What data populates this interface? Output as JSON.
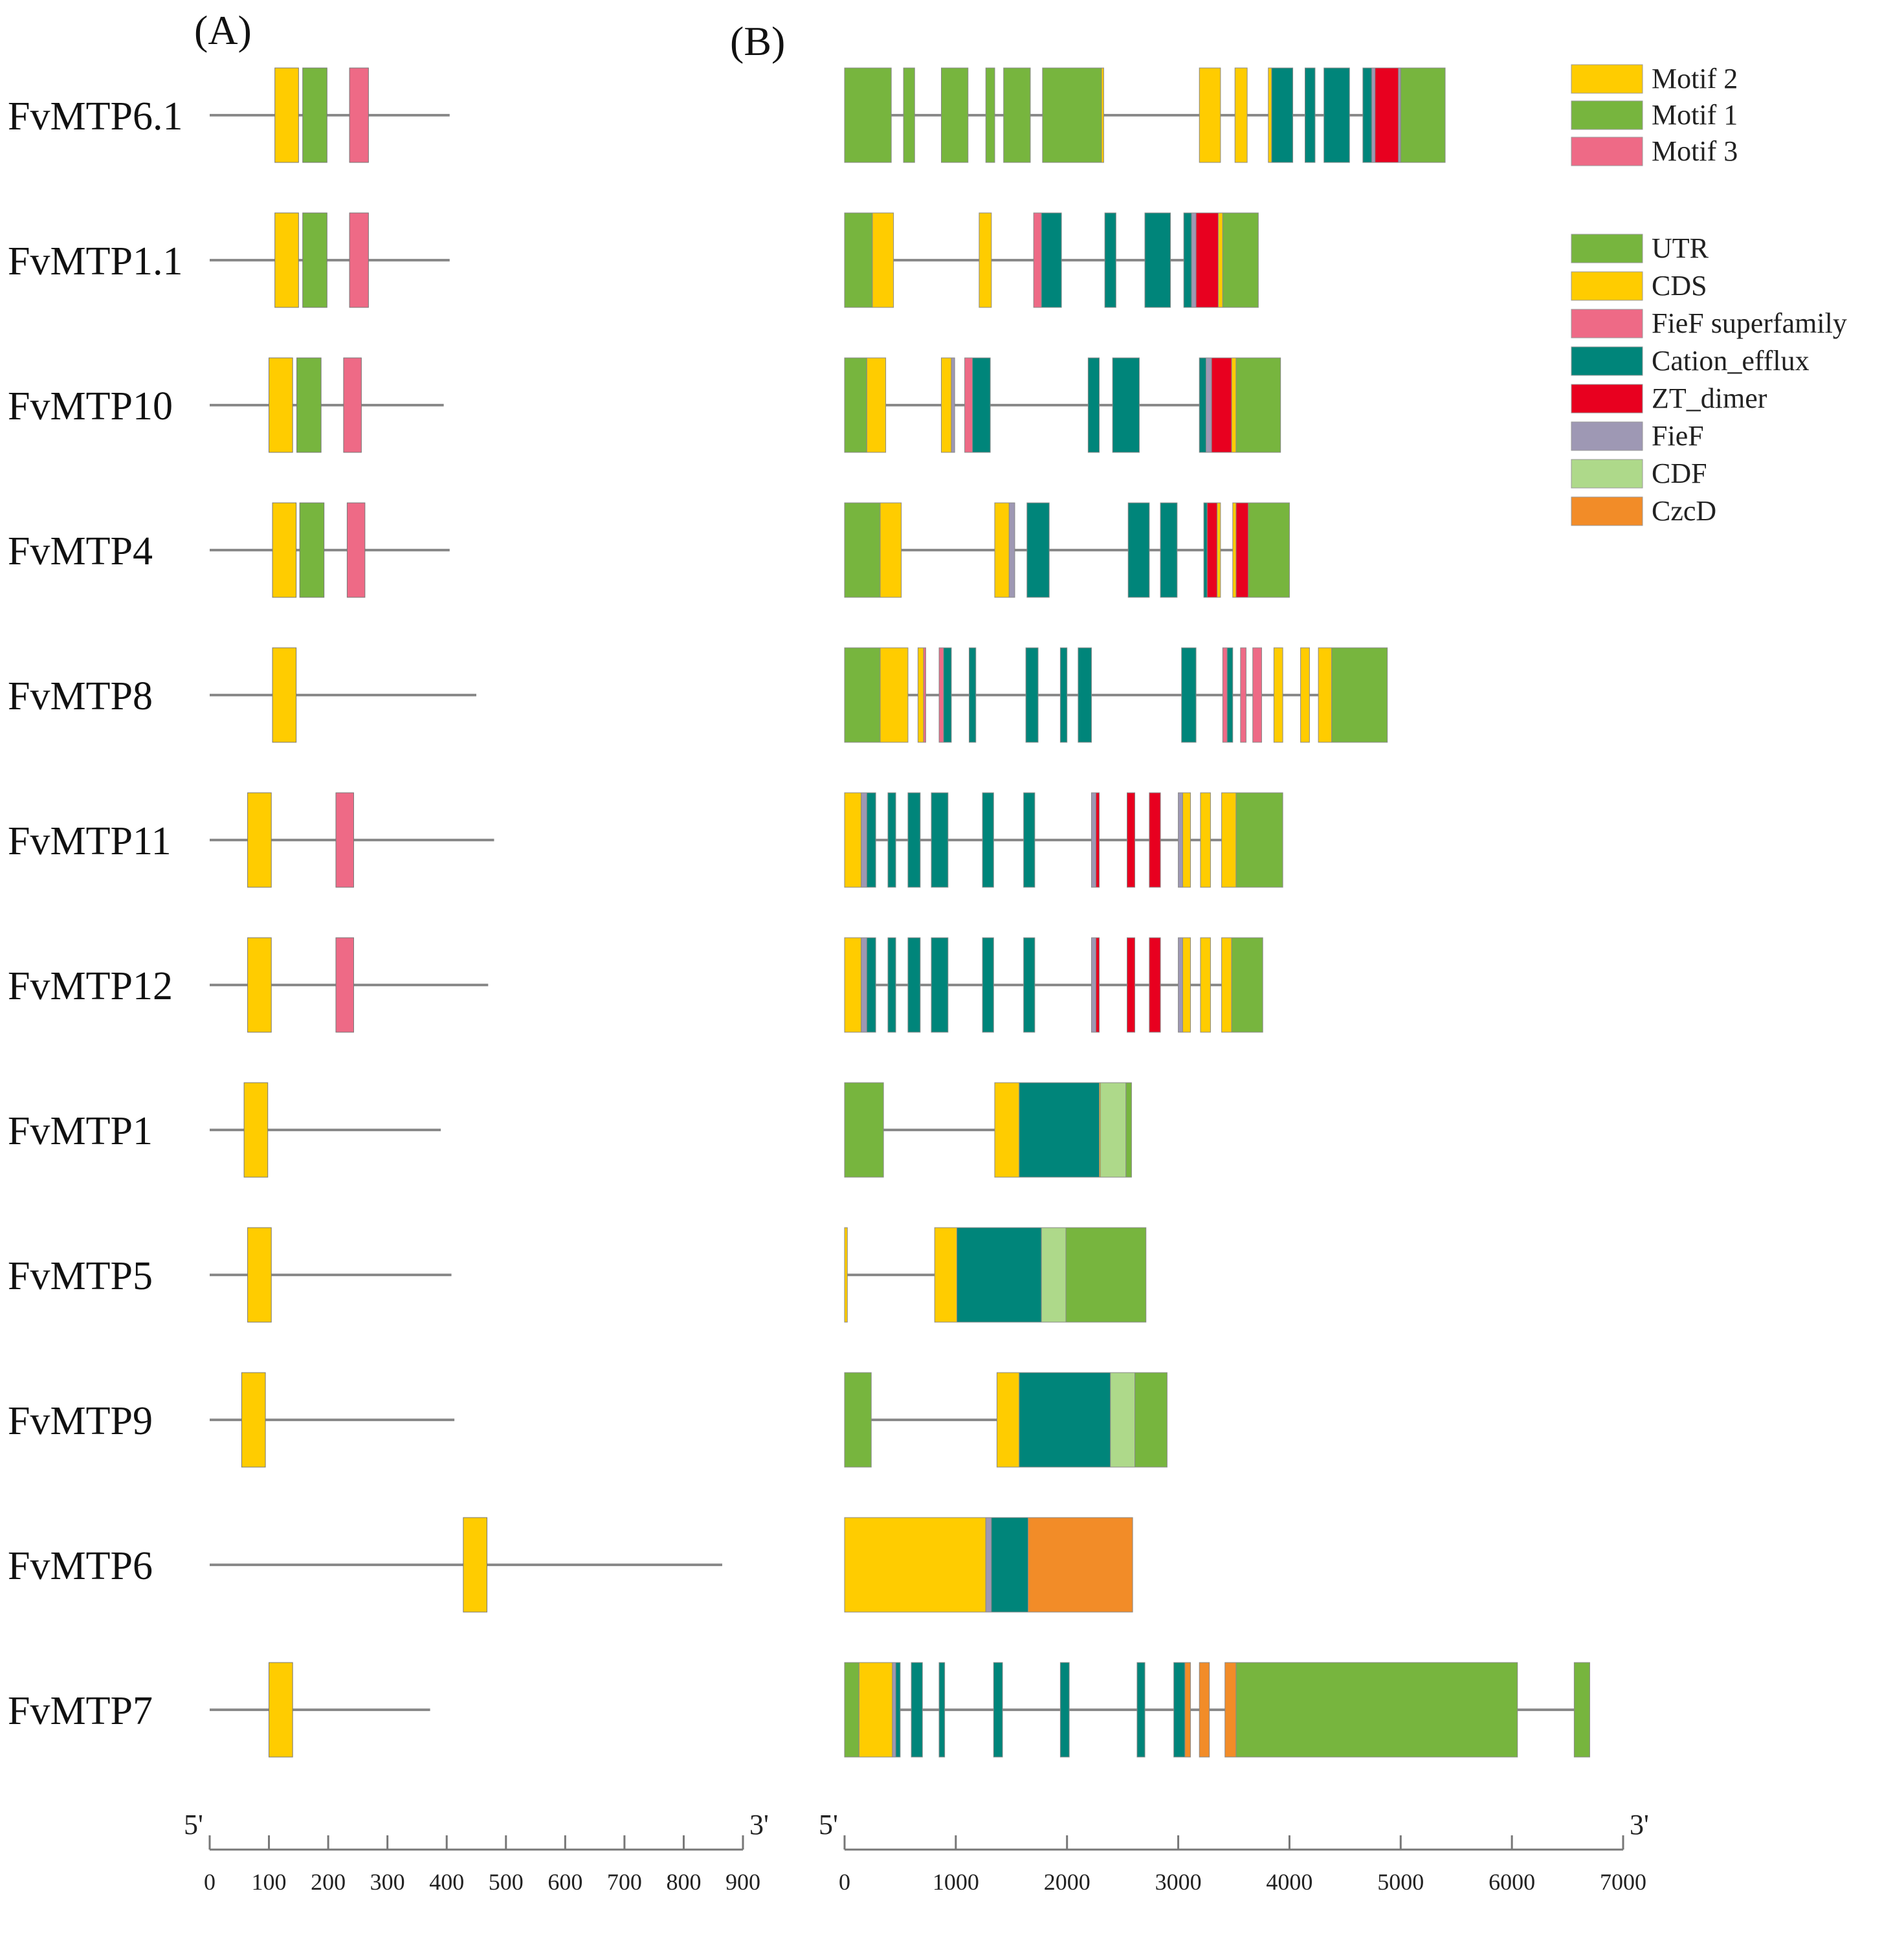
{
  "panel_labels": {
    "a": "(A)",
    "b": "(B)"
  },
  "colors": {
    "line": "#8a8a8a",
    "motif_2": "#FFCC00",
    "motif_1": "#77B53E",
    "motif_3": "#EE6A86",
    "UTR": "#77B53E",
    "CDS": "#FFCC00",
    "FieF_superfamily": "#EE6A86",
    "Cation_efflux": "#00857A",
    "ZT_dimer": "#E8001F",
    "FieF": "#9E98B4",
    "CDF": "#AED98A",
    "CzcD": "#F28C28"
  },
  "legend_motif": [
    {
      "label": "Motif 2",
      "key": "motif_2"
    },
    {
      "label": "Motif 1",
      "key": "motif_1"
    },
    {
      "label": "Motif 3",
      "key": "motif_3"
    }
  ],
  "legend_structure": [
    {
      "label": "UTR",
      "key": "UTR"
    },
    {
      "label": "CDS",
      "key": "CDS"
    },
    {
      "label": "FieF superfamily",
      "key": "FieF_superfamily"
    },
    {
      "label": "Cation_efflux",
      "key": "Cation_efflux"
    },
    {
      "label": "ZT_dimer",
      "key": "ZT_dimer"
    },
    {
      "label": "FieF",
      "key": "FieF"
    },
    {
      "label": "CDF",
      "key": "CDF"
    },
    {
      "label": "CzcD",
      "key": "CzcD"
    }
  ],
  "axis_a": {
    "start_label": "5'",
    "end_label": "3'",
    "min": 0,
    "max": 900,
    "ticks": [
      "0",
      "100",
      "200",
      "300",
      "400",
      "500",
      "600",
      "700",
      "800",
      "900"
    ]
  },
  "axis_b": {
    "start_label": "5'",
    "end_label": "3'",
    "min": 0,
    "max": 7000,
    "ticks": [
      "0",
      "1000",
      "2000",
      "3000",
      "4000",
      "5000",
      "6000",
      "7000"
    ]
  },
  "chart_data": {
    "type": "gene_structure_diagram",
    "panel_a_unit": "amino acids (aa)",
    "panel_b_unit": "base pairs (bp)",
    "genes": [
      {
        "name": "FvMTP6.1",
        "protein_length": 405,
        "motifs": [
          {
            "m": "motif_2",
            "s": 110,
            "e": 150
          },
          {
            "m": "motif_1",
            "s": 157,
            "e": 198
          },
          {
            "m": "motif_3",
            "s": 236,
            "e": 268
          }
        ],
        "gene_length": 5400,
        "features": [
          {
            "f": "UTR",
            "s": 0,
            "e": 420
          },
          {
            "f": "UTR",
            "s": 530,
            "e": 630
          },
          {
            "f": "UTR",
            "s": 870,
            "e": 1110
          },
          {
            "f": "UTR",
            "s": 1270,
            "e": 1350
          },
          {
            "f": "UTR",
            "s": 1430,
            "e": 1670
          },
          {
            "f": "UTR",
            "s": 1780,
            "e": 2310
          },
          {
            "f": "CDS",
            "s": 2310,
            "e": 2330
          },
          {
            "f": "CDS",
            "s": 3190,
            "e": 3380
          },
          {
            "f": "CDS",
            "s": 3510,
            "e": 3620
          },
          {
            "f": "CDS",
            "s": 3810,
            "e": 3840
          },
          {
            "f": "Cation_efflux",
            "s": 3840,
            "e": 4030
          },
          {
            "f": "Cation_efflux",
            "s": 4140,
            "e": 4230
          },
          {
            "f": "Cation_efflux",
            "s": 4310,
            "e": 4540
          },
          {
            "f": "Cation_efflux",
            "s": 4660,
            "e": 4740
          },
          {
            "f": "FieF",
            "s": 4740,
            "e": 4770
          },
          {
            "f": "ZT_dimer",
            "s": 4770,
            "e": 4980
          },
          {
            "f": "FieF",
            "s": 4980,
            "e": 5000
          },
          {
            "f": "UTR",
            "s": 5000,
            "e": 5400
          }
        ]
      },
      {
        "name": "FvMTP1.1",
        "protein_length": 405,
        "motifs": [
          {
            "m": "motif_2",
            "s": 110,
            "e": 150
          },
          {
            "m": "motif_1",
            "s": 157,
            "e": 198
          },
          {
            "m": "motif_3",
            "s": 236,
            "e": 268
          }
        ],
        "gene_length": 3720,
        "features": [
          {
            "f": "UTR",
            "s": 0,
            "e": 250
          },
          {
            "f": "CDS",
            "s": 250,
            "e": 440
          },
          {
            "f": "CDS",
            "s": 1210,
            "e": 1320
          },
          {
            "f": "FieF_superfamily",
            "s": 1700,
            "e": 1770
          },
          {
            "f": "Cation_efflux",
            "s": 1770,
            "e": 1950
          },
          {
            "f": "Cation_efflux",
            "s": 2340,
            "e": 2440
          },
          {
            "f": "Cation_efflux",
            "s": 2700,
            "e": 2930
          },
          {
            "f": "Cation_efflux",
            "s": 3050,
            "e": 3120
          },
          {
            "f": "FieF",
            "s": 3120,
            "e": 3160
          },
          {
            "f": "ZT_dimer",
            "s": 3160,
            "e": 3360
          },
          {
            "f": "CDS",
            "s": 3360,
            "e": 3400
          },
          {
            "f": "UTR",
            "s": 3400,
            "e": 3720
          }
        ]
      },
      {
        "name": "FvMTP10",
        "protein_length": 395,
        "motifs": [
          {
            "m": "motif_2",
            "s": 100,
            "e": 140
          },
          {
            "m": "motif_1",
            "s": 147,
            "e": 188
          },
          {
            "m": "motif_3",
            "s": 226,
            "e": 256
          }
        ],
        "gene_length": 3920,
        "features": [
          {
            "f": "UTR",
            "s": 0,
            "e": 200
          },
          {
            "f": "CDS",
            "s": 200,
            "e": 370
          },
          {
            "f": "CDS",
            "s": 870,
            "e": 960
          },
          {
            "f": "FieF",
            "s": 960,
            "e": 990
          },
          {
            "f": "FieF_superfamily",
            "s": 1080,
            "e": 1150
          },
          {
            "f": "Cation_efflux",
            "s": 1150,
            "e": 1310
          },
          {
            "f": "Cation_efflux",
            "s": 2190,
            "e": 2290
          },
          {
            "f": "Cation_efflux",
            "s": 2410,
            "e": 2650
          },
          {
            "f": "Cation_efflux",
            "s": 3190,
            "e": 3250
          },
          {
            "f": "FieF",
            "s": 3250,
            "e": 3300
          },
          {
            "f": "ZT_dimer",
            "s": 3300,
            "e": 3480
          },
          {
            "f": "CDS",
            "s": 3480,
            "e": 3520
          },
          {
            "f": "UTR",
            "s": 3520,
            "e": 3920
          }
        ]
      },
      {
        "name": "FvMTP4",
        "protein_length": 405,
        "motifs": [
          {
            "m": "motif_2",
            "s": 106,
            "e": 146
          },
          {
            "m": "motif_1",
            "s": 152,
            "e": 193
          },
          {
            "m": "motif_3",
            "s": 232,
            "e": 262
          }
        ],
        "gene_length": 4000,
        "features": [
          {
            "f": "UTR",
            "s": 0,
            "e": 320
          },
          {
            "f": "CDS",
            "s": 320,
            "e": 510
          },
          {
            "f": "CDS",
            "s": 1350,
            "e": 1480
          },
          {
            "f": "FieF",
            "s": 1480,
            "e": 1530
          },
          {
            "f": "Cation_efflux",
            "s": 1640,
            "e": 1840
          },
          {
            "f": "Cation_efflux",
            "s": 2550,
            "e": 2740
          },
          {
            "f": "Cation_efflux",
            "s": 2840,
            "e": 2990
          },
          {
            "f": "Cation_efflux",
            "s": 3230,
            "e": 3260
          },
          {
            "f": "ZT_dimer",
            "s": 3260,
            "e": 3350
          },
          {
            "f": "CDS",
            "s": 3350,
            "e": 3380
          },
          {
            "f": "CDS",
            "s": 3490,
            "e": 3520
          },
          {
            "f": "ZT_dimer",
            "s": 3520,
            "e": 3630
          },
          {
            "f": "UTR",
            "s": 3630,
            "e": 4000
          }
        ]
      },
      {
        "name": "FvMTP8",
        "protein_length": 450,
        "motifs": [
          {
            "m": "motif_2",
            "s": 106,
            "e": 146
          }
        ],
        "gene_length": 4880,
        "features": [
          {
            "f": "UTR",
            "s": 0,
            "e": 320
          },
          {
            "f": "CDS",
            "s": 320,
            "e": 570
          },
          {
            "f": "CDS",
            "s": 660,
            "e": 710
          },
          {
            "f": "FieF_superfamily",
            "s": 710,
            "e": 730
          },
          {
            "f": "FieF_superfamily",
            "s": 850,
            "e": 890
          },
          {
            "f": "Cation_efflux",
            "s": 890,
            "e": 960
          },
          {
            "f": "Cation_efflux",
            "s": 1120,
            "e": 1180
          },
          {
            "f": "Cation_efflux",
            "s": 1630,
            "e": 1740
          },
          {
            "f": "Cation_efflux",
            "s": 1940,
            "e": 2000
          },
          {
            "f": "Cation_efflux",
            "s": 2100,
            "e": 2220
          },
          {
            "f": "Cation_efflux",
            "s": 3030,
            "e": 3160
          },
          {
            "f": "FieF_superfamily",
            "s": 3400,
            "e": 3440
          },
          {
            "f": "Cation_efflux",
            "s": 3440,
            "e": 3490
          },
          {
            "f": "FieF_superfamily",
            "s": 3560,
            "e": 3610
          },
          {
            "f": "FieF_superfamily",
            "s": 3670,
            "e": 3750
          },
          {
            "f": "CDS",
            "s": 3860,
            "e": 3940
          },
          {
            "f": "CDS",
            "s": 4100,
            "e": 4180
          },
          {
            "f": "CDS",
            "s": 4260,
            "e": 4380
          },
          {
            "f": "UTR",
            "s": 4380,
            "e": 4880
          }
        ]
      },
      {
        "name": "FvMTP11",
        "protein_length": 480,
        "motifs": [
          {
            "m": "motif_2",
            "s": 64,
            "e": 104
          },
          {
            "m": "motif_3",
            "s": 213,
            "e": 243
          }
        ],
        "gene_length": 3940,
        "features": [
          {
            "f": "CDS",
            "s": 0,
            "e": 150
          },
          {
            "f": "FieF",
            "s": 150,
            "e": 200
          },
          {
            "f": "Cation_efflux",
            "s": 200,
            "e": 280
          },
          {
            "f": "Cation_efflux",
            "s": 390,
            "e": 460
          },
          {
            "f": "Cation_efflux",
            "s": 570,
            "e": 680
          },
          {
            "f": "Cation_efflux",
            "s": 780,
            "e": 930
          },
          {
            "f": "Cation_efflux",
            "s": 1240,
            "e": 1340
          },
          {
            "f": "Cation_efflux",
            "s": 1610,
            "e": 1710
          },
          {
            "f": "FieF",
            "s": 2220,
            "e": 2260
          },
          {
            "f": "ZT_dimer",
            "s": 2260,
            "e": 2290
          },
          {
            "f": "ZT_dimer",
            "s": 2540,
            "e": 2610
          },
          {
            "f": "ZT_dimer",
            "s": 2740,
            "e": 2840
          },
          {
            "f": "FieF",
            "s": 3000,
            "e": 3040
          },
          {
            "f": "CDS",
            "s": 3040,
            "e": 3110
          },
          {
            "f": "CDS",
            "s": 3200,
            "e": 3290
          },
          {
            "f": "CDS",
            "s": 3390,
            "e": 3520
          },
          {
            "f": "UTR",
            "s": 3520,
            "e": 3940
          }
        ]
      },
      {
        "name": "FvMTP12",
        "protein_length": 470,
        "motifs": [
          {
            "m": "motif_2",
            "s": 64,
            "e": 104
          },
          {
            "m": "motif_3",
            "s": 213,
            "e": 243
          }
        ],
        "gene_length": 3760,
        "features": [
          {
            "f": "CDS",
            "s": 0,
            "e": 150
          },
          {
            "f": "FieF",
            "s": 150,
            "e": 200
          },
          {
            "f": "Cation_efflux",
            "s": 200,
            "e": 280
          },
          {
            "f": "Cation_efflux",
            "s": 390,
            "e": 460
          },
          {
            "f": "Cation_efflux",
            "s": 570,
            "e": 680
          },
          {
            "f": "Cation_efflux",
            "s": 780,
            "e": 930
          },
          {
            "f": "Cation_efflux",
            "s": 1240,
            "e": 1340
          },
          {
            "f": "Cation_efflux",
            "s": 1610,
            "e": 1710
          },
          {
            "f": "FieF",
            "s": 2220,
            "e": 2260
          },
          {
            "f": "ZT_dimer",
            "s": 2260,
            "e": 2290
          },
          {
            "f": "ZT_dimer",
            "s": 2540,
            "e": 2610
          },
          {
            "f": "ZT_dimer",
            "s": 2740,
            "e": 2840
          },
          {
            "f": "FieF",
            "s": 3000,
            "e": 3040
          },
          {
            "f": "CDS",
            "s": 3040,
            "e": 3110
          },
          {
            "f": "CDS",
            "s": 3200,
            "e": 3290
          },
          {
            "f": "CDS",
            "s": 3390,
            "e": 3480
          },
          {
            "f": "UTR",
            "s": 3480,
            "e": 3760
          }
        ]
      },
      {
        "name": "FvMTP1",
        "protein_length": 390,
        "motifs": [
          {
            "m": "motif_2",
            "s": 58,
            "e": 98
          }
        ],
        "gene_length": 2580,
        "features": [
          {
            "f": "UTR",
            "s": 0,
            "e": 350
          },
          {
            "f": "CDS",
            "s": 1350,
            "e": 1570
          },
          {
            "f": "Cation_efflux",
            "s": 1570,
            "e": 2290
          },
          {
            "f": "CDS",
            "s": 2290,
            "e": 2300
          },
          {
            "f": "CDF",
            "s": 2300,
            "e": 2530
          },
          {
            "f": "UTR",
            "s": 2530,
            "e": 2580
          }
        ]
      },
      {
        "name": "FvMTP5",
        "protein_length": 408,
        "motifs": [
          {
            "m": "motif_2",
            "s": 64,
            "e": 104
          }
        ],
        "gene_length": 2710,
        "features": [
          {
            "f": "CDS",
            "s": 0,
            "e": 25
          },
          {
            "f": "CDS",
            "s": 810,
            "e": 1010
          },
          {
            "f": "Cation_efflux",
            "s": 1010,
            "e": 1770
          },
          {
            "f": "CDF",
            "s": 1770,
            "e": 1990
          },
          {
            "f": "UTR",
            "s": 1990,
            "e": 2710
          }
        ]
      },
      {
        "name": "FvMTP9",
        "protein_length": 413,
        "motifs": [
          {
            "m": "motif_2",
            "s": 54,
            "e": 94
          }
        ],
        "gene_length": 2900,
        "features": [
          {
            "f": "UTR",
            "s": 0,
            "e": 240
          },
          {
            "f": "CDS",
            "s": 1370,
            "e": 1570
          },
          {
            "f": "Cation_efflux",
            "s": 1570,
            "e": 2390
          },
          {
            "f": "CDF",
            "s": 2390,
            "e": 2610
          },
          {
            "f": "UTR",
            "s": 2610,
            "e": 2900
          }
        ]
      },
      {
        "name": "FvMTP6",
        "protein_length": 865,
        "motifs": [
          {
            "m": "motif_2",
            "s": 428,
            "e": 468
          }
        ],
        "gene_length": 2590,
        "features": [
          {
            "f": "CDS",
            "s": 0,
            "e": 1270
          },
          {
            "f": "FieF",
            "s": 1270,
            "e": 1320
          },
          {
            "f": "Cation_efflux",
            "s": 1320,
            "e": 1650
          },
          {
            "f": "CzcD",
            "s": 1650,
            "e": 2590
          }
        ]
      },
      {
        "name": "FvMTP7",
        "protein_length": 372,
        "motifs": [
          {
            "m": "motif_2",
            "s": 100,
            "e": 140
          }
        ],
        "gene_length": 6700,
        "features": [
          {
            "f": "UTR",
            "s": 0,
            "e": 130
          },
          {
            "f": "CDS",
            "s": 130,
            "e": 430
          },
          {
            "f": "FieF",
            "s": 430,
            "e": 460
          },
          {
            "f": "Cation_efflux",
            "s": 460,
            "e": 500
          },
          {
            "f": "Cation_efflux",
            "s": 600,
            "e": 700
          },
          {
            "f": "Cation_efflux",
            "s": 850,
            "e": 900
          },
          {
            "f": "Cation_efflux",
            "s": 1340,
            "e": 1420
          },
          {
            "f": "Cation_efflux",
            "s": 1940,
            "e": 2020
          },
          {
            "f": "Cation_efflux",
            "s": 2630,
            "e": 2700
          },
          {
            "f": "Cation_efflux",
            "s": 2960,
            "e": 3060
          },
          {
            "f": "CzcD",
            "s": 3060,
            "e": 3110
          },
          {
            "f": "CzcD",
            "s": 3190,
            "e": 3280
          },
          {
            "f": "CzcD",
            "s": 3420,
            "e": 3520
          },
          {
            "f": "UTR",
            "s": 3520,
            "e": 6050
          },
          {
            "f": "UTR",
            "s": 6560,
            "e": 6700
          }
        ]
      }
    ]
  }
}
